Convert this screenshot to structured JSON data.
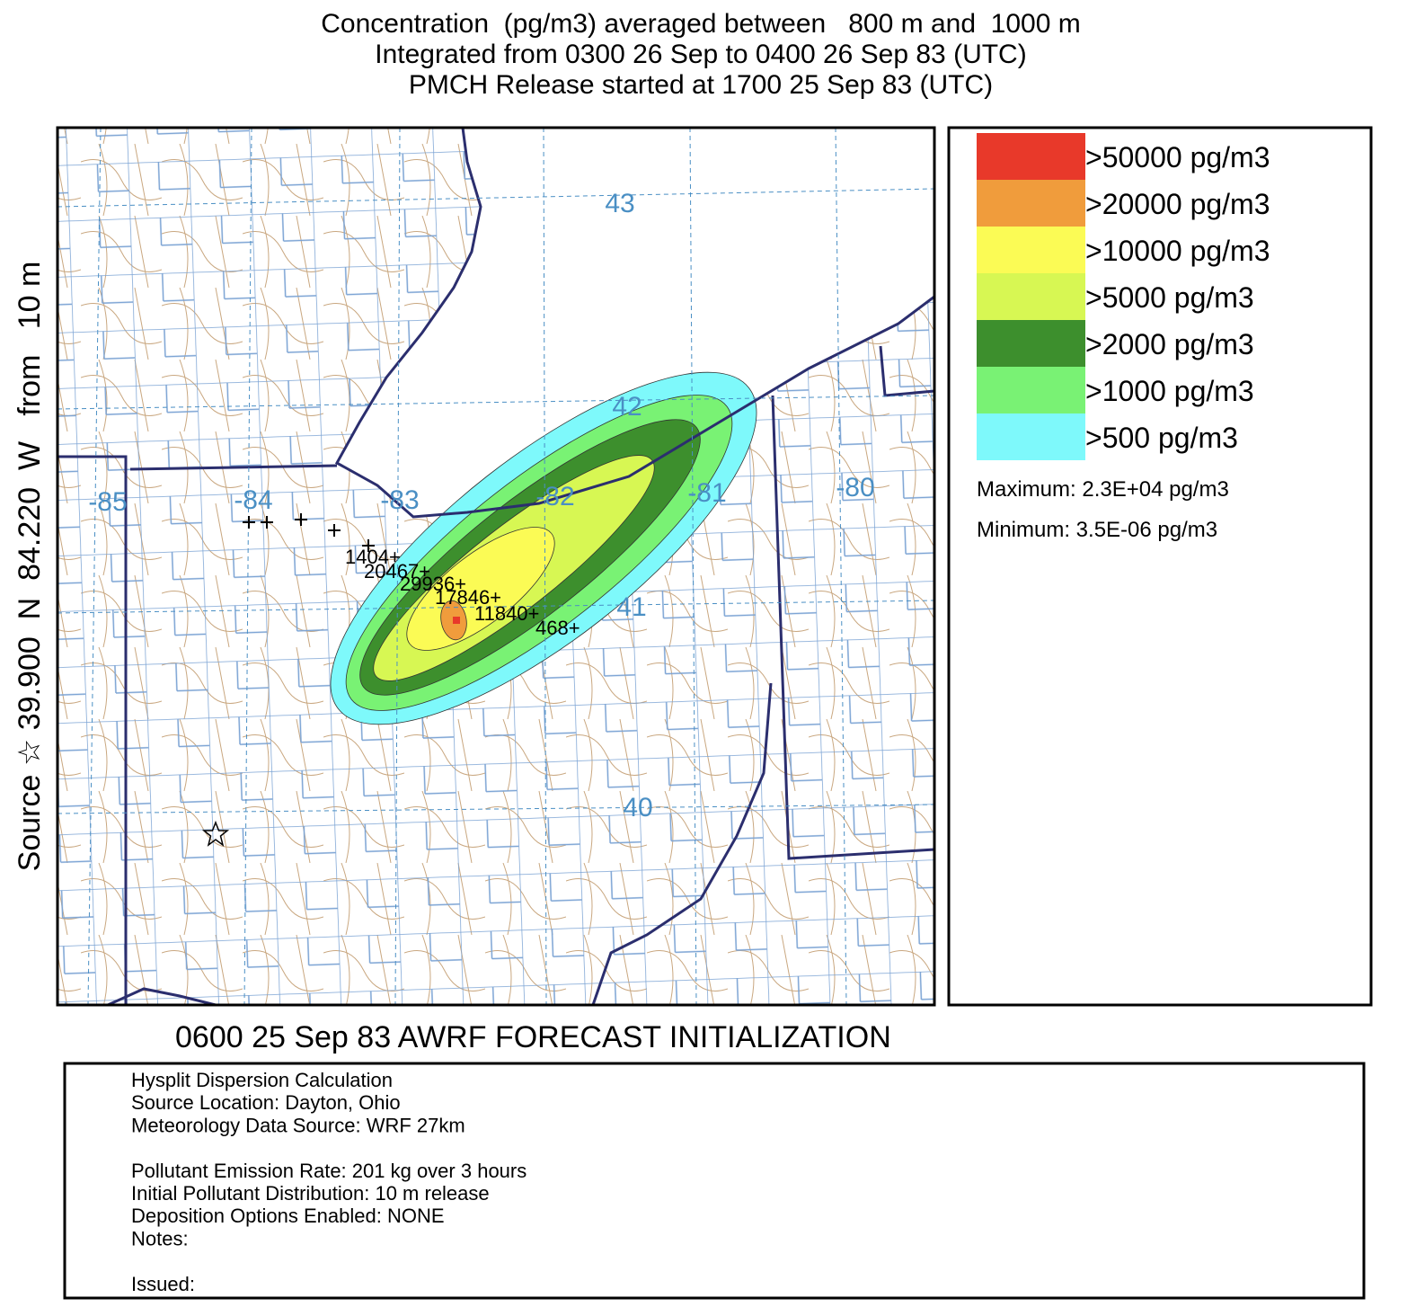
{
  "title": [
    "Concentration  (pg/m3) averaged between   800 m and  1000 m",
    "Integrated from 0300 26 Sep to 0400 26 Sep 83 (UTC)",
    "PMCH Release started at 1700 25 Sep 83 (UTC)"
  ],
  "side_label": "Source ☆ 39.900  N  84.220  W   from   10 m",
  "map": {
    "longitude_labels": [
      "-85",
      "-84",
      "-83",
      "-82",
      "-81",
      "-80"
    ],
    "latitude_labels": [
      "43",
      "42",
      "41",
      "40"
    ],
    "sampler_labels": [
      "1404+",
      "20467+",
      "29936+",
      "17846+",
      "11840+",
      "468+"
    ]
  },
  "legend": {
    "entries": [
      {
        "label": ">50000 pg/m3",
        "color": "#e8392a"
      },
      {
        "label": ">20000 pg/m3",
        "color": "#f09c3c"
      },
      {
        "label": ">10000 pg/m3",
        "color": "#fbfb55"
      },
      {
        "label": ">5000 pg/m3",
        "color": "#d7f753"
      },
      {
        "label": ">2000 pg/m3",
        "color": "#3d8f2d"
      },
      {
        "label": ">1000 pg/m3",
        "color": "#79f274"
      },
      {
        "label": ">500 pg/m3",
        "color": "#7ef9fb"
      }
    ],
    "maximum": "Maximum: 2.3E+04 pg/m3",
    "minimum": "Minimum: 3.5E-06 pg/m3"
  },
  "footer": "0600 25 Sep 83 AWRF FORECAST INITIALIZATION",
  "info": [
    [
      "Hysplit Dispersion Calculation",
      "Source Location: Dayton, Ohio",
      "Meteorology Data Source: WRF 27km"
    ],
    [
      "Pollutant Emission Rate: 201 kg over 3 hours",
      "Initial Pollutant Distribution: 10 m release",
      "Deposition Options Enabled: NONE",
      "Notes:"
    ],
    [
      "Issued:"
    ]
  ]
}
